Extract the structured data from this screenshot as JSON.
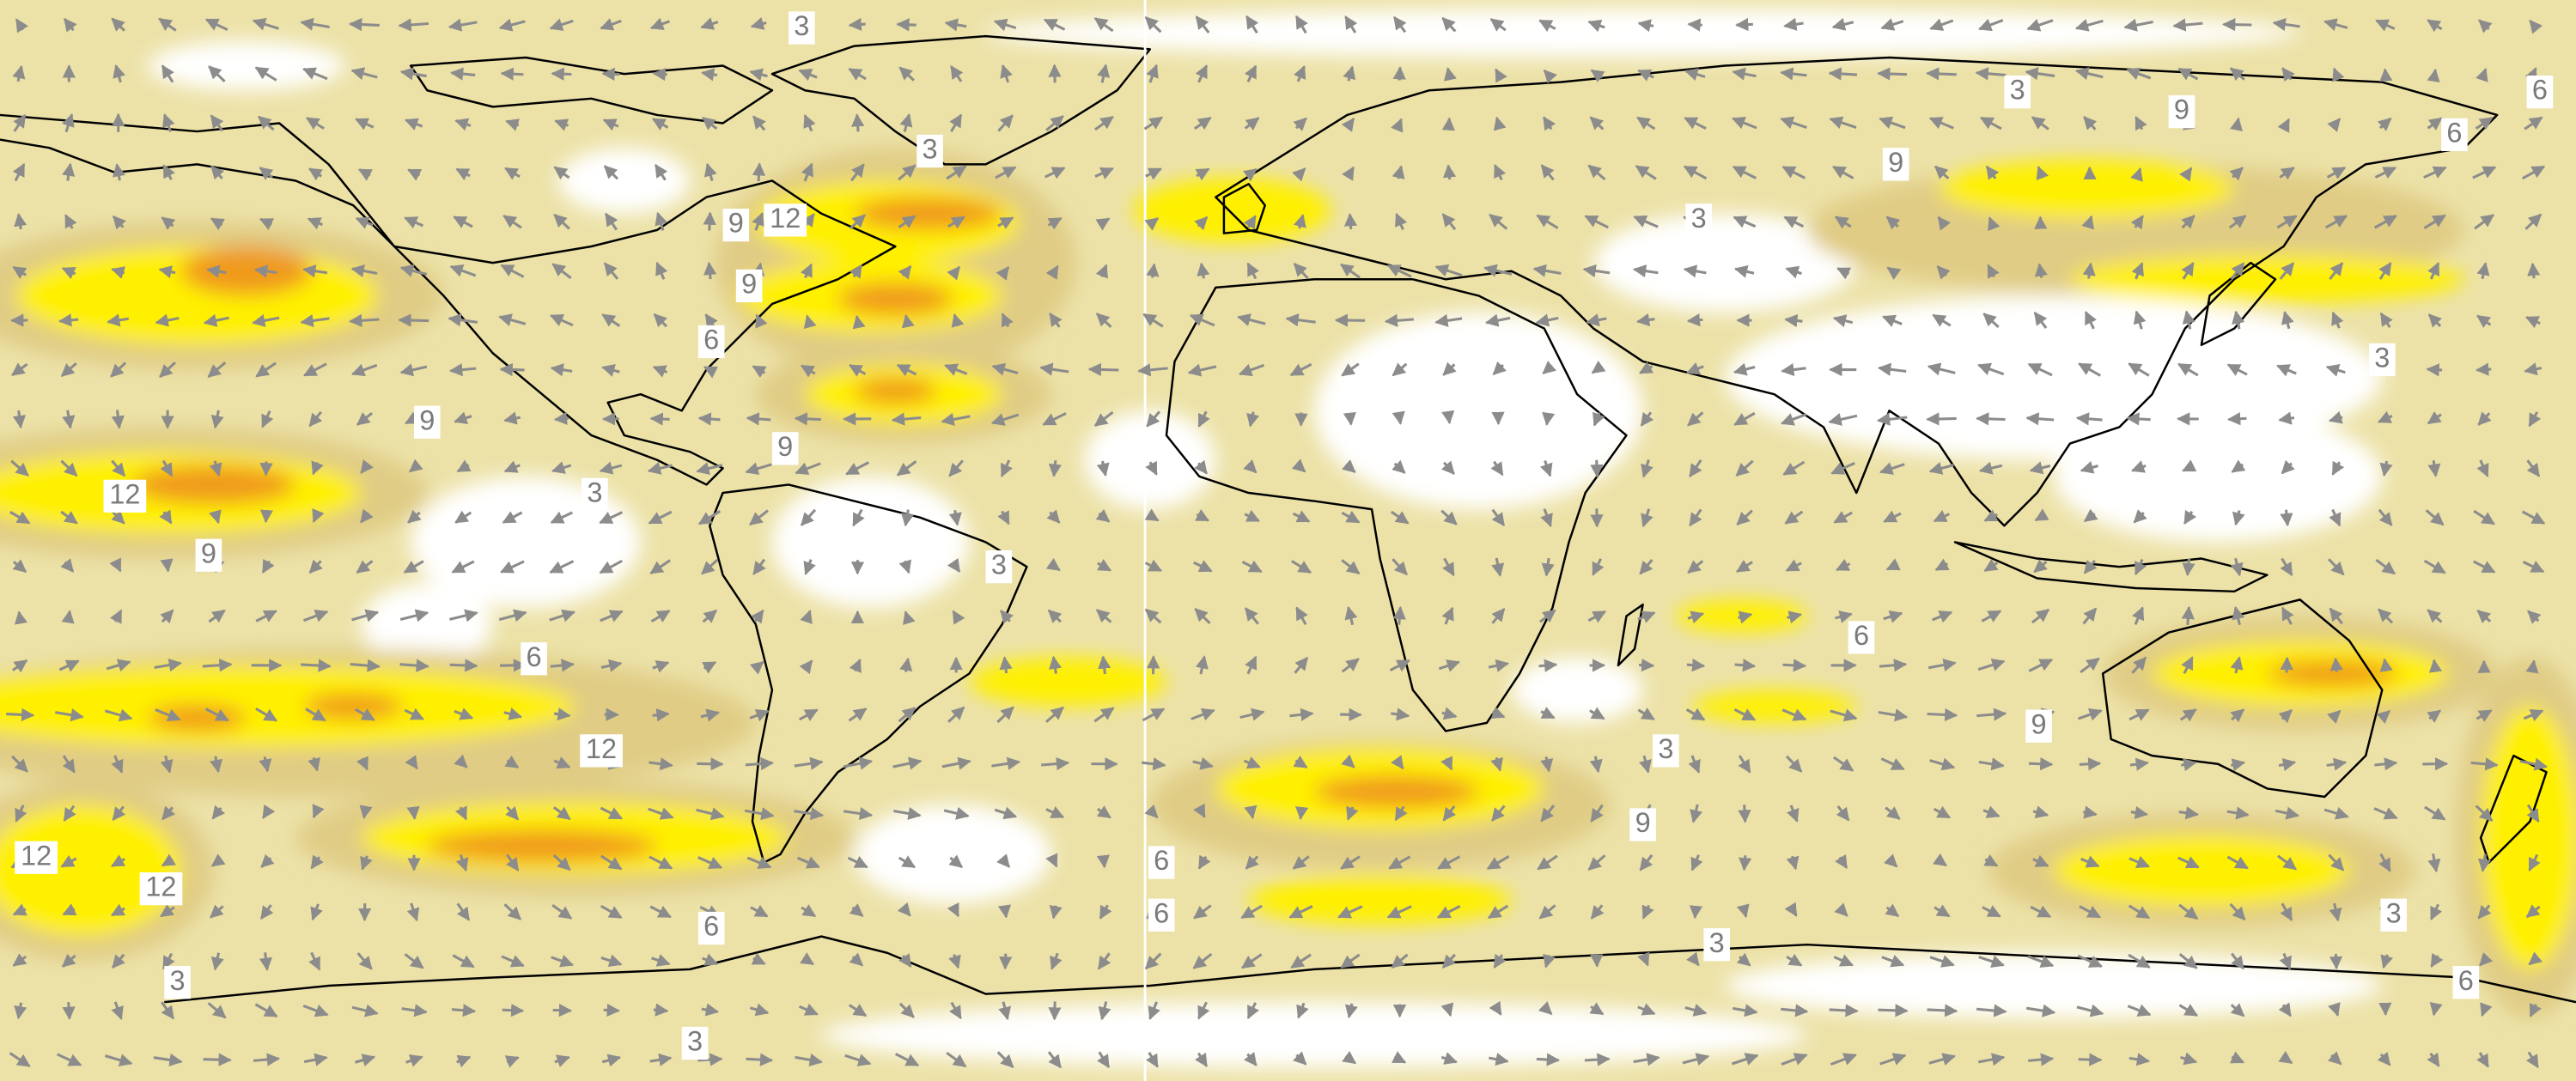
{
  "contour_labels": [
    "3",
    "3",
    "9",
    "12",
    "9",
    "6",
    "9",
    "12",
    "9",
    "3",
    "9",
    "3",
    "6",
    "12",
    "12",
    "12",
    "6",
    "3",
    "3",
    "3",
    "9",
    "6",
    "6",
    "9",
    "3",
    "3",
    "6",
    "9",
    "3",
    "9",
    "6",
    "6",
    "3",
    "3",
    "6"
  ]
}
